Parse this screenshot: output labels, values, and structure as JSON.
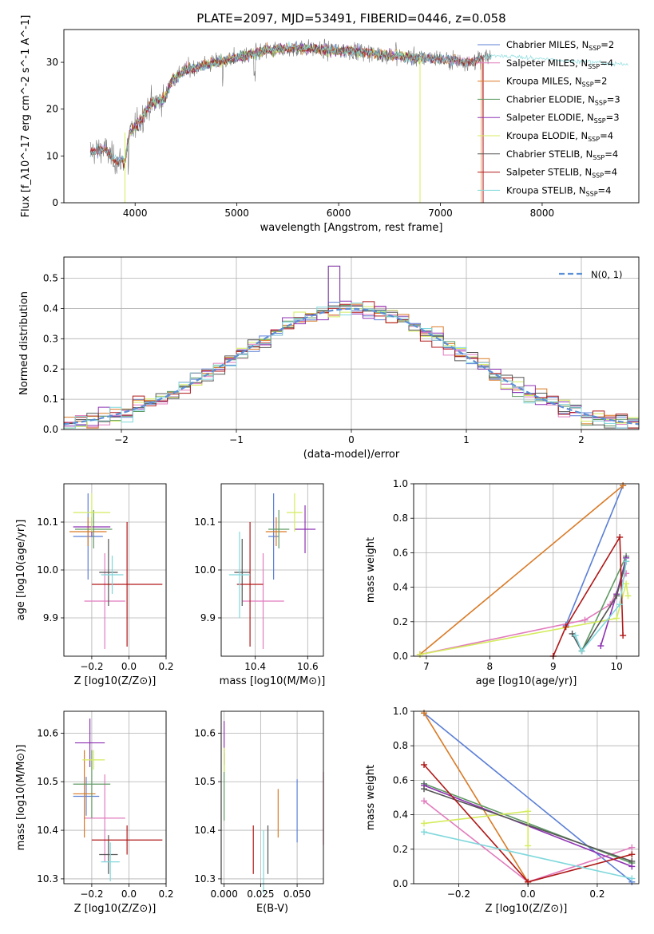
{
  "colors": {
    "Chabrier MILES": "#5b7fd6",
    "Salpeter MILES": "#e17bbd",
    "Kroupa MILES": "#d97a25",
    "Chabrier ELODIE": "#5f9a63",
    "Salpeter ELODIE": "#8e33b3",
    "Kroupa ELODIE": "#d4ec5c",
    "Chabrier STELIB": "#555555",
    "Salpeter STELIB": "#b01818",
    "Kroupa STELIB": "#80d8dc"
  },
  "chart_data": [
    {
      "id": "spectrum",
      "type": "line",
      "title": "PLATE=2097, MJD=53491, FIBERID=0446, z=0.058",
      "xlabel": "wavelength [Angstrom, rest frame]",
      "ylabel": "Flux [f_λ10^-17 erg cm^-2 s^-1 A^-1]",
      "xlim": [
        3300,
        8950
      ],
      "ylim": [
        0,
        37
      ],
      "xticks": [
        "4000",
        "5000",
        "6000",
        "7000",
        "8000"
      ],
      "yticks": [
        "0",
        "10",
        "20",
        "30"
      ],
      "continuum": {
        "x": [
          3560,
          3700,
          3800,
          3900,
          3950,
          4050,
          4150,
          4300,
          4350,
          4500,
          4700,
          4900,
          5100,
          5300,
          5500,
          5700,
          5900,
          6100,
          6300,
          6500,
          6700,
          6900,
          7100,
          7300,
          7450,
          7600
        ],
        "y": [
          11,
          11.5,
          9,
          9,
          15,
          17.5,
          21,
          22.5,
          26,
          28.5,
          29.5,
          30.5,
          31.5,
          32.5,
          33,
          33,
          32.5,
          32.5,
          32,
          31.5,
          31,
          31,
          30.5,
          30,
          31,
          31.5
        ]
      },
      "legend": [
        "Chabrier MILES, N_SSP=2",
        "Salpeter MILES, N_SSP=4",
        "Kroupa MILES, N_SSP=2",
        "Chabrier ELODIE, N_SSP=3",
        "Salpeter ELODIE, N_SSP=3",
        "Kroupa ELODIE, N_SSP=4",
        "Chabrier STELIB, N_SSP=4",
        "Salpeter STELIB, N_SSP=4",
        "Kroupa STELIB, N_SSP=4"
      ],
      "legend_position": "top-right"
    },
    {
      "id": "residuals",
      "type": "step",
      "xlabel": "(data-model)/error",
      "ylabel": "Normed distribution",
      "xlim": [
        -2.5,
        2.5
      ],
      "ylim": [
        0,
        0.57
      ],
      "xticks": [
        "−2",
        "−1",
        "0",
        "1",
        "2"
      ],
      "yticks": [
        "0.0",
        "0.1",
        "0.2",
        "0.3",
        "0.4",
        "0.5"
      ],
      "bin_width": 0.1,
      "normal_legend": "N(0, 1)",
      "legend_position": "top-right"
    },
    {
      "id": "age-vs-Z",
      "type": "errorbar",
      "xlabel": "Z [log10(Z/Z⊙)]",
      "ylabel": "age [log10(age/yr)]",
      "xlim": [
        -0.35,
        0.2
      ],
      "ylim": [
        9.82,
        10.18
      ],
      "xticks": [
        "−0.2",
        "0.0",
        "0.2"
      ],
      "yticks": [
        "9.9",
        "10.0",
        "10.1"
      ],
      "points": [
        {
          "m": "Chabrier MILES",
          "x": -0.22,
          "xerr": 0.08,
          "y": 10.07,
          "yerr": 0.09
        },
        {
          "m": "Salpeter MILES",
          "x": -0.13,
          "xerr": 0.11,
          "y": 9.935,
          "yerr": 0.1
        },
        {
          "m": "Kroupa MILES",
          "x": -0.22,
          "xerr": 0.1,
          "y": 10.08,
          "yerr": 0.03
        },
        {
          "m": "Chabrier ELODIE",
          "x": -0.19,
          "xerr": 0.1,
          "y": 10.085,
          "yerr": 0.04
        },
        {
          "m": "Salpeter ELODIE",
          "x": -0.2,
          "xerr": 0.1,
          "y": 10.09,
          "yerr": 0.02
        },
        {
          "m": "Kroupa ELODIE",
          "x": -0.2,
          "xerr": 0.1,
          "y": 10.12,
          "yerr": 0.04
        },
        {
          "m": "Chabrier STELIB",
          "x": -0.11,
          "xerr": 0.05,
          "y": 9.995,
          "yerr": 0.07
        },
        {
          "m": "Salpeter STELIB",
          "x": -0.01,
          "xerr": 0.19,
          "y": 9.97,
          "yerr": 0.13
        },
        {
          "m": "Kroupa STELIB",
          "x": -0.09,
          "xerr": 0.06,
          "y": 9.99,
          "yerr": 0.04
        }
      ]
    },
    {
      "id": "age-vs-mass",
      "type": "errorbar",
      "xlabel": "mass [log10(M/M⊙)]",
      "ylabel": "",
      "xlim": [
        10.27,
        10.66
      ],
      "ylim": [
        9.82,
        10.18
      ],
      "xticks": [
        "10.4",
        "10.6"
      ],
      "yticks": [
        "9.9",
        "10.0",
        "10.1"
      ],
      "points": [
        {
          "m": "Chabrier MILES",
          "x": 10.47,
          "xerr": 0.02,
          "y": 10.07,
          "yerr": 0.09
        },
        {
          "m": "Salpeter MILES",
          "x": 10.43,
          "xerr": 0.08,
          "y": 9.935,
          "yerr": 0.1
        },
        {
          "m": "Kroupa MILES",
          "x": 10.48,
          "xerr": 0.04,
          "y": 10.08,
          "yerr": 0.03
        },
        {
          "m": "Chabrier ELODIE",
          "x": 10.49,
          "xerr": 0.04,
          "y": 10.085,
          "yerr": 0.04
        },
        {
          "m": "Salpeter ELODIE",
          "x": 10.59,
          "xerr": 0.04,
          "y": 10.085,
          "yerr": 0.05
        },
        {
          "m": "Kroupa ELODIE",
          "x": 10.55,
          "xerr": 0.03,
          "y": 10.12,
          "yerr": 0.04
        },
        {
          "m": "Chabrier STELIB",
          "x": 10.35,
          "xerr": 0.03,
          "y": 9.995,
          "yerr": 0.07
        },
        {
          "m": "Salpeter STELIB",
          "x": 10.38,
          "xerr": 0.05,
          "y": 9.97,
          "yerr": 0.13
        },
        {
          "m": "Kroupa STELIB",
          "x": 10.34,
          "xerr": 0.04,
          "y": 9.99,
          "yerr": 0.09
        }
      ]
    },
    {
      "id": "weight-vs-age",
      "type": "line",
      "xlabel": "age [log10(age/yr)]",
      "ylabel": "mass weight",
      "xlim": [
        6.8,
        10.35
      ],
      "ylim": [
        0,
        1
      ],
      "xticks": [
        "7",
        "8",
        "9",
        "10"
      ],
      "yticks": [
        "0.0",
        "0.2",
        "0.4",
        "0.6",
        "0.8",
        "1.0"
      ],
      "series": [
        {
          "m": "Chabrier MILES",
          "x": [
            9.2,
            10.1
          ],
          "y": [
            0.18,
            0.99
          ]
        },
        {
          "m": "Salpeter MILES",
          "x": [
            6.9,
            9.5,
            9.9,
            10.15
          ],
          "y": [
            0.01,
            0.21,
            0.3,
            0.48
          ]
        },
        {
          "m": "Kroupa MILES",
          "x": [
            6.9,
            10.1
          ],
          "y": [
            0.01,
            0.99
          ]
        },
        {
          "m": "Chabrier ELODIE",
          "x": [
            9.45,
            10.15
          ],
          "y": [
            0.03,
            0.58
          ]
        },
        {
          "m": "Salpeter ELODIE",
          "x": [
            9.75,
            10.0,
            10.15
          ],
          "y": [
            0.06,
            0.36,
            0.57
          ]
        },
        {
          "m": "Kroupa ELODIE",
          "x": [
            6.9,
            10.0,
            10.15,
            10.18
          ],
          "y": [
            0.01,
            0.22,
            0.42,
            0.35
          ]
        },
        {
          "m": "Chabrier STELIB",
          "x": [
            9.3,
            9.45,
            10.0,
            10.15
          ],
          "y": [
            0.13,
            0.03,
            0.35,
            0.55
          ]
        },
        {
          "m": "Salpeter STELIB",
          "x": [
            9.0,
            9.2,
            10.05,
            10.1
          ],
          "y": [
            0.0,
            0.17,
            0.69,
            0.12
          ]
        },
        {
          "m": "Kroupa STELIB",
          "x": [
            9.35,
            9.45,
            10.05,
            10.15
          ],
          "y": [
            0.12,
            0.03,
            0.3,
            0.55
          ]
        }
      ]
    },
    {
      "id": "mass-vs-Z",
      "type": "errorbar",
      "xlabel": "Z [log10(Z/Z⊙)]",
      "ylabel": "mass [log10(M/M⊙)]",
      "xlim": [
        -0.35,
        0.2
      ],
      "ylim": [
        10.29,
        10.645
      ],
      "xticks": [
        "−0.2",
        "0.0",
        "0.2"
      ],
      "yticks": [
        "10.3",
        "10.4",
        "10.5",
        "10.6"
      ],
      "points": [
        {
          "m": "Chabrier MILES",
          "x": -0.23,
          "xerr": 0.07,
          "y": 10.47,
          "yerr": 0.04
        },
        {
          "m": "Salpeter MILES",
          "x": -0.13,
          "xerr": 0.11,
          "y": 10.425,
          "yerr": 0.09
        },
        {
          "m": "Kroupa MILES",
          "x": -0.24,
          "xerr": 0.06,
          "y": 10.475,
          "yerr": 0.09
        },
        {
          "m": "Chabrier ELODIE",
          "x": -0.2,
          "xerr": 0.1,
          "y": 10.495,
          "yerr": 0.07
        },
        {
          "m": "Salpeter ELODIE",
          "x": -0.21,
          "xerr": 0.08,
          "y": 10.58,
          "yerr": 0.05
        },
        {
          "m": "Kroupa ELODIE",
          "x": -0.19,
          "xerr": 0.06,
          "y": 10.545,
          "yerr": 0.02
        },
        {
          "m": "Chabrier STELIB",
          "x": -0.11,
          "xerr": 0.05,
          "y": 10.35,
          "yerr": 0.04
        },
        {
          "m": "Salpeter STELIB",
          "x": -0.01,
          "xerr": 0.19,
          "y": 10.38,
          "yerr": 0.03
        },
        {
          "m": "Kroupa STELIB",
          "x": -0.1,
          "xerr": 0.05,
          "y": 10.335,
          "yerr": 0.04
        }
      ]
    },
    {
      "id": "mass-vs-EBV",
      "type": "errorbar",
      "xlabel": "E(B-V)",
      "ylabel": "",
      "xlim": [
        -0.002,
        0.068
      ],
      "ylim": [
        10.29,
        10.645
      ],
      "xticks": [
        "0.000",
        "0.025",
        "0.050"
      ],
      "yticks": [
        "10.3",
        "10.4",
        "10.5",
        "10.6"
      ],
      "points": [
        {
          "m": "Chabrier MILES",
          "x": 0.05,
          "y": 10.44,
          "yerr": 0.065
        },
        {
          "m": "Salpeter MILES",
          "x": 0.068,
          "y": 10.445,
          "yerr": 0.075
        },
        {
          "m": "Kroupa MILES",
          "x": 0.037,
          "y": 10.435,
          "yerr": 0.05
        },
        {
          "m": "Chabrier ELODIE",
          "x": 0.0,
          "y": 10.49,
          "yerr": 0.07
        },
        {
          "m": "Salpeter ELODIE",
          "x": 0.0,
          "y": 10.58,
          "yerr": 0.045
        },
        {
          "m": "Kroupa ELODIE",
          "x": 0.0,
          "y": 10.545,
          "yerr": 0.025
        },
        {
          "m": "Chabrier STELIB",
          "x": 0.03,
          "y": 10.36,
          "yerr": 0.05
        },
        {
          "m": "Salpeter STELIB",
          "x": 0.02,
          "y": 10.36,
          "yerr": 0.05
        },
        {
          "m": "Kroupa STELIB",
          "x": 0.027,
          "y": 10.335,
          "yerr": 0.065
        }
      ]
    },
    {
      "id": "weight-vs-Z",
      "type": "line",
      "xlabel": "Z [log10(Z/Z⊙)]",
      "ylabel": "mass weight",
      "xlim": [
        -0.33,
        0.32
      ],
      "ylim": [
        0,
        1
      ],
      "xticks": [
        "−0.2",
        "0.0",
        "0.2"
      ],
      "yticks": [
        "0.0",
        "0.2",
        "0.4",
        "0.6",
        "0.8",
        "1.0"
      ],
      "series": [
        {
          "m": "Chabrier MILES",
          "x": [
            -0.3,
            0.3
          ],
          "y": [
            0.99,
            0.01
          ]
        },
        {
          "m": "Salpeter MILES",
          "x": [
            -0.3,
            0.0,
            0.3
          ],
          "y": [
            0.48,
            0.01,
            0.21
          ]
        },
        {
          "m": "Kroupa MILES",
          "x": [
            -0.3,
            0.0
          ],
          "y": [
            0.99,
            0.01
          ]
        },
        {
          "m": "Chabrier ELODIE",
          "x": [
            -0.3,
            0.3
          ],
          "y": [
            0.58,
            0.12
          ]
        },
        {
          "m": "Salpeter ELODIE",
          "x": [
            -0.3,
            0.3
          ],
          "y": [
            0.57,
            0.1
          ]
        },
        {
          "m": "Kroupa ELODIE",
          "x": [
            -0.3,
            0.0,
            0.0
          ],
          "y": [
            0.35,
            0.42,
            0.22
          ]
        },
        {
          "m": "Chabrier STELIB",
          "x": [
            -0.3,
            0.3
          ],
          "y": [
            0.55,
            0.13
          ]
        },
        {
          "m": "Salpeter STELIB",
          "x": [
            -0.3,
            0.0,
            0.3
          ],
          "y": [
            0.69,
            0.01,
            0.17
          ]
        },
        {
          "m": "Kroupa STELIB",
          "x": [
            -0.3,
            0.3
          ],
          "y": [
            0.3,
            0.03
          ]
        }
      ]
    }
  ]
}
